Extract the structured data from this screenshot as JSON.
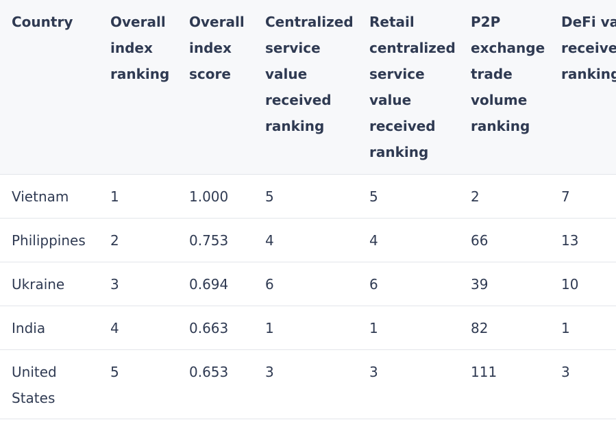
{
  "table": {
    "headers": [
      "Country",
      "Overall index ranking",
      "Overall index score",
      "Centralized service value received ranking",
      "Retail centralized service value received ranking",
      "P2P exchange trade volume ranking",
      "DeFi value received ranking"
    ],
    "rows": [
      [
        "Vietnam",
        "1",
        "1.000",
        "5",
        "5",
        "2",
        "7"
      ],
      [
        "Philippines",
        "2",
        "0.753",
        "4",
        "4",
        "66",
        "13"
      ],
      [
        "Ukraine",
        "3",
        "0.694",
        "6",
        "6",
        "39",
        "10"
      ],
      [
        "India",
        "4",
        "0.663",
        "1",
        "1",
        "82",
        "1"
      ],
      [
        "United States",
        "5",
        "0.653",
        "3",
        "3",
        "111",
        "3"
      ]
    ]
  }
}
